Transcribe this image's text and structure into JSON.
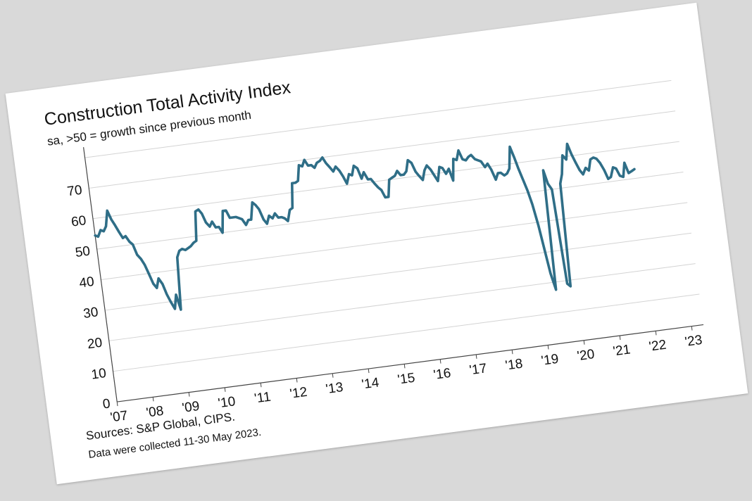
{
  "chart_data": {
    "type": "line",
    "title": "Construction Total Activity Index",
    "subtitle": "sa, >50 = growth since previous month",
    "xlabel": "",
    "ylabel": "",
    "ylim": [
      0,
      80
    ],
    "yticks": [
      0,
      10,
      20,
      30,
      40,
      50,
      60,
      70
    ],
    "xlim": [
      2007.0,
      2023.33
    ],
    "xticks": [
      "'07",
      "'08",
      "'09",
      "'10",
      "'11",
      "'12",
      "'13",
      "'14",
      "'15",
      "'16",
      "'17",
      "'18",
      "'19",
      "'20",
      "'21",
      "'22",
      "'23"
    ],
    "grid": true,
    "line_color": "#2f6e87",
    "series": [
      {
        "points": [
          [
            2007.0,
            54.5
          ],
          [
            2007.08,
            54.0
          ],
          [
            2007.17,
            56.0
          ],
          [
            2007.25,
            55.5
          ],
          [
            2007.33,
            57.0
          ],
          [
            2007.42,
            62.0
          ],
          [
            2007.5,
            59.0
          ],
          [
            2007.58,
            57.0
          ],
          [
            2007.67,
            54.5
          ],
          [
            2007.75,
            52.5
          ],
          [
            2007.83,
            53.0
          ],
          [
            2007.92,
            51.0
          ],
          [
            2008.0,
            50.0
          ],
          [
            2008.08,
            46.5
          ],
          [
            2008.17,
            45.0
          ],
          [
            2008.25,
            43.0
          ],
          [
            2008.33,
            40.0
          ],
          [
            2008.42,
            36.5
          ],
          [
            2008.5,
            35.0
          ],
          [
            2008.58,
            38.0
          ],
          [
            2008.67,
            36.0
          ],
          [
            2008.75,
            32.5
          ],
          [
            2008.83,
            30.0
          ],
          [
            2008.92,
            27.5
          ],
          [
            2009.0,
            32.0
          ],
          [
            2009.08,
            27.0
          ],
          [
            2009.17,
            44.0
          ],
          [
            2009.25,
            46.0
          ],
          [
            2009.33,
            46.5
          ],
          [
            2009.42,
            46.0
          ],
          [
            2009.5,
            46.5
          ],
          [
            2009.58,
            47.0
          ],
          [
            2009.67,
            48.0
          ],
          [
            2009.75,
            48.5
          ],
          [
            2009.83,
            58.0
          ],
          [
            2009.92,
            58.5
          ],
          [
            2010.0,
            57.0
          ],
          [
            2010.08,
            54.0
          ],
          [
            2010.17,
            52.5
          ],
          [
            2010.25,
            54.0
          ],
          [
            2010.33,
            52.0
          ],
          [
            2010.42,
            52.0
          ],
          [
            2010.5,
            50.0
          ],
          [
            2010.58,
            57.0
          ],
          [
            2010.67,
            57.0
          ],
          [
            2010.75,
            54.5
          ],
          [
            2010.83,
            54.5
          ],
          [
            2010.92,
            54.5
          ],
          [
            2011.0,
            54.0
          ],
          [
            2011.08,
            53.5
          ],
          [
            2011.17,
            51.5
          ],
          [
            2011.25,
            53.0
          ],
          [
            2011.33,
            53.0
          ],
          [
            2011.42,
            58.5
          ],
          [
            2011.5,
            57.5
          ],
          [
            2011.58,
            56.0
          ],
          [
            2011.67,
            52.5
          ],
          [
            2011.75,
            51.0
          ],
          [
            2011.83,
            53.5
          ],
          [
            2011.92,
            52.5
          ],
          [
            2012.0,
            54.0
          ],
          [
            2012.08,
            52.5
          ],
          [
            2012.17,
            52.5
          ],
          [
            2012.25,
            52.0
          ],
          [
            2012.33,
            51.0
          ],
          [
            2012.42,
            54.5
          ],
          [
            2012.5,
            55.0
          ],
          [
            2012.58,
            63.0
          ],
          [
            2012.67,
            63.0
          ],
          [
            2012.75,
            63.5
          ],
          [
            2012.83,
            68.5
          ],
          [
            2012.92,
            68.0
          ],
          [
            2013.0,
            70.0
          ],
          [
            2013.08,
            68.0
          ],
          [
            2013.17,
            68.0
          ],
          [
            2013.25,
            67.0
          ],
          [
            2013.33,
            68.5
          ],
          [
            2013.42,
            69.0
          ],
          [
            2013.5,
            70.0
          ],
          [
            2013.58,
            68.0
          ],
          [
            2013.67,
            66.5
          ],
          [
            2013.75,
            65.0
          ],
          [
            2013.83,
            66.5
          ],
          [
            2013.92,
            65.0
          ],
          [
            2014.0,
            63.0
          ],
          [
            2014.08,
            60.5
          ],
          [
            2014.17,
            63.5
          ],
          [
            2014.25,
            63.0
          ],
          [
            2014.33,
            66.0
          ],
          [
            2014.42,
            65.0
          ],
          [
            2014.5,
            61.5
          ],
          [
            2014.58,
            63.5
          ],
          [
            2014.67,
            61.0
          ],
          [
            2014.75,
            61.0
          ],
          [
            2014.83,
            59.5
          ],
          [
            2014.92,
            58.0
          ],
          [
            2015.0,
            57.0
          ],
          [
            2015.08,
            54.5
          ],
          [
            2015.17,
            54.5
          ],
          [
            2015.25,
            60.0
          ],
          [
            2015.33,
            60.5
          ],
          [
            2015.42,
            61.0
          ],
          [
            2015.5,
            62.5
          ],
          [
            2015.58,
            61.0
          ],
          [
            2015.67,
            61.0
          ],
          [
            2015.75,
            62.0
          ],
          [
            2015.83,
            65.5
          ],
          [
            2015.92,
            64.5
          ],
          [
            2016.0,
            61.5
          ],
          [
            2016.08,
            60.0
          ],
          [
            2016.17,
            58.5
          ],
          [
            2016.25,
            61.5
          ],
          [
            2016.33,
            63.0
          ],
          [
            2016.42,
            61.5
          ],
          [
            2016.5,
            59.5
          ],
          [
            2016.58,
            57.5
          ],
          [
            2016.67,
            62.0
          ],
          [
            2016.75,
            61.5
          ],
          [
            2016.83,
            59.5
          ],
          [
            2016.92,
            61.0
          ],
          [
            2017.0,
            57.0
          ],
          [
            2017.08,
            64.0
          ],
          [
            2017.17,
            63.5
          ],
          [
            2017.25,
            66.5
          ],
          [
            2017.33,
            63.5
          ],
          [
            2017.42,
            63.0
          ],
          [
            2017.5,
            64.0
          ],
          [
            2017.58,
            64.5
          ],
          [
            2017.67,
            63.0
          ],
          [
            2017.75,
            62.5
          ],
          [
            2017.83,
            62.0
          ],
          [
            2017.92,
            60.0
          ],
          [
            2018.0,
            61.0
          ],
          [
            2018.08,
            59.0
          ],
          [
            2018.17,
            55.5
          ],
          [
            2018.25,
            57.5
          ],
          [
            2018.33,
            57.5
          ],
          [
            2018.42,
            56.5
          ],
          [
            2018.5,
            57.0
          ],
          [
            2018.58,
            58.5
          ],
          [
            2018.67,
            65.5
          ],
          [
            2018.75,
            62.0
          ],
          [
            2018.83,
            58.0
          ],
          [
            2018.92,
            54.0
          ],
          [
            2019.0,
            50.5
          ],
          [
            2019.08,
            46.0
          ],
          [
            2019.17,
            39.0
          ],
          [
            2019.25,
            31.0
          ],
          [
            2019.33,
            23.0
          ],
          [
            2019.42,
            17.5
          ],
          [
            2019.5,
            56.5
          ],
          [
            2019.58,
            52.0
          ],
          [
            2019.67,
            50.0
          ],
          [
            2019.75,
            19.0
          ],
          [
            2019.83,
            18.0
          ],
          [
            2019.92,
            51.5
          ],
          [
            2020.0,
            54.5
          ],
          [
            2020.08,
            60.5
          ],
          [
            2020.17,
            59.0
          ],
          [
            2020.25,
            64.0
          ],
          [
            2020.33,
            60.5
          ],
          [
            2020.42,
            57.5
          ],
          [
            2020.5,
            55.0
          ],
          [
            2020.58,
            53.5
          ],
          [
            2020.67,
            55.5
          ],
          [
            2020.75,
            54.5
          ],
          [
            2020.83,
            58.0
          ],
          [
            2020.92,
            58.5
          ],
          [
            2021.0,
            58.0
          ],
          [
            2021.08,
            56.5
          ],
          [
            2021.17,
            54.0
          ],
          [
            2021.25,
            51.0
          ],
          [
            2021.33,
            51.5
          ],
          [
            2021.42,
            54.5
          ],
          [
            2021.5,
            54.0
          ],
          [
            2021.58,
            51.5
          ],
          [
            2021.67,
            51.0
          ],
          [
            2021.75,
            55.5
          ],
          [
            2021.83,
            52.0
          ],
          [
            2021.92,
            52.5
          ],
          [
            2022.0,
            53.0
          ]
        ]
      }
    ]
  },
  "footer": {
    "sources": "Sources: S&P Global, CIPS.",
    "collected": "Data were collected 11-30 May 2023."
  }
}
